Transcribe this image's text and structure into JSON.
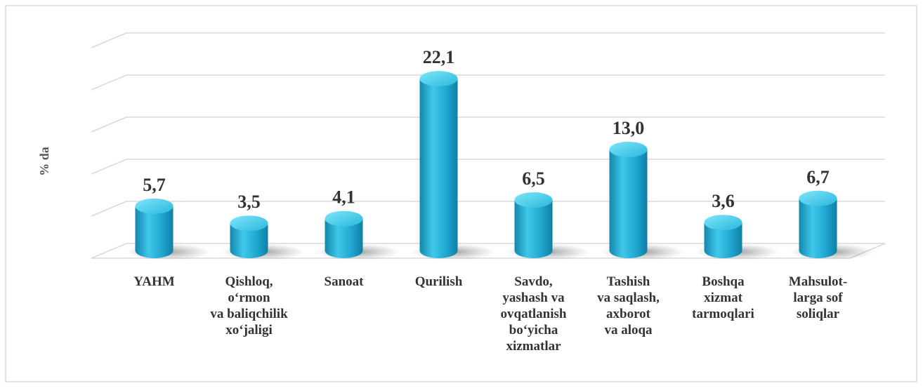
{
  "chart_data": {
    "type": "bar",
    "y_label": "% da",
    "categories": [
      "YAHM",
      "Qishloq,\no‘rmon\nva baliqchilik\nxo‘jaligi",
      "Sanoat",
      "Qurilish",
      "Savdo,\nyashash va\novqatlanish\nbo‘yicha\nxizmatlar",
      "Tashish\nva saqlash,\naxborot\nva aloqa",
      "Boshqa\nxizmat\ntarmoqlari",
      "Mahsulot-\nlarga sof\nsoliqlar"
    ],
    "values": [
      5.7,
      3.5,
      4.1,
      22.1,
      6.5,
      13.0,
      3.6,
      6.7
    ],
    "value_labels": [
      "5,7",
      "3,5",
      "4,1",
      "22,1",
      "6,5",
      "13,0",
      "3,6",
      "6,7"
    ],
    "color": "#22b0d8",
    "ylim": [
      0,
      25
    ],
    "yticks": [
      0,
      5,
      10,
      15,
      20,
      25
    ],
    "grid": true
  }
}
